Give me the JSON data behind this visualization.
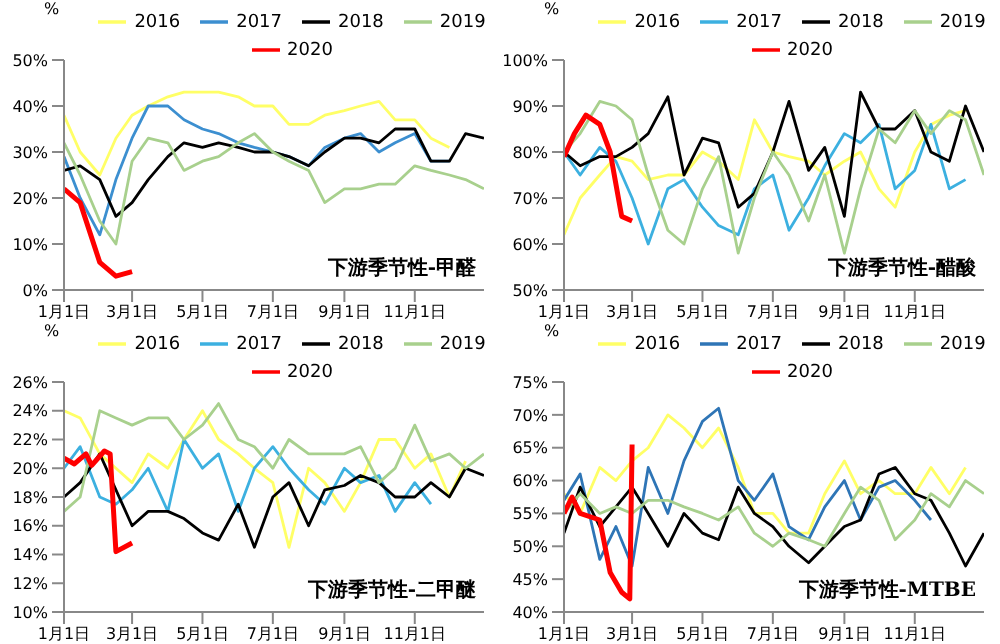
{
  "chart_data": [
    {
      "type": "line",
      "title": "下游季节性-甲醛",
      "ylabel": "%",
      "legend": "top",
      "grid": false,
      "marker": "none",
      "line_style": "solid",
      "x": [
        "--01-01",
        "--01-15",
        "--02-01",
        "--02-15",
        "--03-01",
        "--03-15",
        "--04-01",
        "--04-15",
        "--05-01",
        "--05-15",
        "--06-01",
        "--06-15",
        "--07-01",
        "--07-15",
        "--08-01",
        "--08-15",
        "--09-01",
        "--09-15",
        "--10-01",
        "--10-15",
        "--11-01",
        "--11-15",
        "--12-01",
        "--12-15",
        "--12-31"
      ],
      "xlim": [
        "--01-01",
        "--12-31"
      ],
      "xticks": [
        {
          "value": "--01-01",
          "label": "1月1日"
        },
        {
          "value": "--03-01",
          "label": "3月1日"
        },
        {
          "value": "--05-01",
          "label": "5月1日"
        },
        {
          "value": "--07-01",
          "label": "7月1日"
        },
        {
          "value": "--09-01",
          "label": "9月1日"
        },
        {
          "value": "--11-01",
          "label": "11月1日"
        }
      ],
      "ylim": [
        0,
        50
      ],
      "yticks": [
        {
          "value": 0,
          "label": "0%"
        },
        {
          "value": 10,
          "label": "10%"
        },
        {
          "value": 20,
          "label": "20%"
        },
        {
          "value": 30,
          "label": "30%"
        },
        {
          "value": 40,
          "label": "40%"
        },
        {
          "value": 50,
          "label": "50%"
        }
      ],
      "series": [
        {
          "name": "2016",
          "color": "#ffff66",
          "values": [
            38,
            30,
            25,
            33,
            38,
            40,
            42,
            43,
            43,
            43,
            42,
            40,
            40,
            36,
            36,
            38,
            39,
            40,
            41,
            37,
            37,
            33,
            31,
            null,
            null
          ]
        },
        {
          "name": "2017",
          "color": "#3c8fd0",
          "values": [
            29,
            20,
            12,
            24,
            33,
            40,
            40,
            37,
            35,
            34,
            32,
            31,
            30,
            29,
            27,
            31,
            33,
            34,
            30,
            32,
            34,
            28,
            28,
            null,
            null
          ]
        },
        {
          "name": "2018",
          "color": "#000000",
          "values": [
            26,
            27,
            24,
            16,
            19,
            24,
            29,
            32,
            31,
            32,
            31,
            30,
            30,
            29,
            27,
            30,
            33,
            33,
            32,
            35,
            35,
            28,
            28,
            34,
            33
          ]
        },
        {
          "name": "2019",
          "color": "#a8d08d",
          "values": [
            32,
            25,
            15,
            10,
            28,
            33,
            32,
            26,
            28,
            29,
            32,
            34,
            30,
            28,
            26,
            19,
            22,
            22,
            23,
            23,
            27,
            26,
            25,
            24,
            22
          ]
        },
        {
          "name": "2020",
          "color": "#ff0000",
          "x": [
            "--01-01",
            "--01-15",
            "--02-01",
            "--02-15",
            "--03-01"
          ],
          "values": [
            22,
            19,
            6,
            3,
            4
          ]
        }
      ]
    },
    {
      "type": "line",
      "title": "下游季节性-醋酸",
      "ylabel": "%",
      "legend": "top",
      "grid": false,
      "marker": "none",
      "line_style": "solid",
      "x": [
        "--01-01",
        "--01-15",
        "--02-01",
        "--02-15",
        "--03-01",
        "--03-15",
        "--04-01",
        "--04-15",
        "--05-01",
        "--05-15",
        "--06-01",
        "--06-15",
        "--07-01",
        "--07-15",
        "--08-01",
        "--08-15",
        "--09-01",
        "--09-15",
        "--10-01",
        "--10-15",
        "--11-01",
        "--11-15",
        "--12-01",
        "--12-15",
        "--12-31"
      ],
      "xlim": [
        "--01-01",
        "--12-31"
      ],
      "xticks": [
        {
          "value": "--01-01",
          "label": "1月1日"
        },
        {
          "value": "--03-01",
          "label": "3月1日"
        },
        {
          "value": "--05-01",
          "label": "5月1日"
        },
        {
          "value": "--07-01",
          "label": "7月1日"
        },
        {
          "value": "--09-01",
          "label": "9月1日"
        },
        {
          "value": "--11-01",
          "label": "11月1日"
        }
      ],
      "ylim": [
        50,
        100
      ],
      "yticks": [
        {
          "value": 50,
          "label": "50%"
        },
        {
          "value": 60,
          "label": "60%"
        },
        {
          "value": 70,
          "label": "70%"
        },
        {
          "value": 80,
          "label": "80%"
        },
        {
          "value": 90,
          "label": "90%"
        },
        {
          "value": 100,
          "label": "100%"
        }
      ],
      "series": [
        {
          "name": "2016",
          "color": "#ffff66",
          "values": [
            62,
            70,
            75,
            79,
            78,
            74,
            75,
            75,
            80,
            78,
            74,
            87,
            80,
            79,
            78,
            75,
            78,
            80,
            72,
            68,
            80,
            86,
            88,
            89,
            null
          ]
        },
        {
          "name": "2017",
          "color": "#3cb0e0",
          "values": [
            80,
            75,
            81,
            78,
            70,
            60,
            72,
            74,
            68,
            64,
            62,
            72,
            75,
            63,
            70,
            77,
            84,
            82,
            86,
            72,
            76,
            86,
            72,
            74,
            null
          ]
        },
        {
          "name": "2018",
          "color": "#000000",
          "values": [
            80,
            77,
            79,
            79,
            81,
            84,
            92,
            75,
            83,
            82,
            68,
            71,
            80,
            91,
            76,
            81,
            66,
            93,
            85,
            85,
            89,
            80,
            78,
            90,
            80
          ]
        },
        {
          "name": "2019",
          "color": "#a8d08d",
          "values": [
            80,
            84,
            91,
            90,
            87,
            75,
            63,
            60,
            72,
            79,
            58,
            70,
            80,
            75,
            65,
            75,
            58,
            72,
            85,
            82,
            89,
            84,
            89,
            87,
            75
          ]
        },
        {
          "name": "2020",
          "color": "#ff0000",
          "x": [
            "--01-01",
            "--01-10",
            "--01-20",
            "--02-01",
            "--02-10",
            "--02-20",
            "--03-01"
          ],
          "values": [
            79,
            84,
            88,
            86,
            80,
            66,
            65
          ]
        }
      ]
    },
    {
      "type": "line",
      "title": "下游季节性-二甲醚",
      "ylabel": "%",
      "legend": "top",
      "grid": false,
      "marker": "none",
      "line_style": "solid",
      "x": [
        "--01-01",
        "--01-15",
        "--02-01",
        "--02-15",
        "--03-01",
        "--03-15",
        "--04-01",
        "--04-15",
        "--05-01",
        "--05-15",
        "--06-01",
        "--06-15",
        "--07-01",
        "--07-15",
        "--08-01",
        "--08-15",
        "--09-01",
        "--09-15",
        "--10-01",
        "--10-15",
        "--11-01",
        "--11-15",
        "--12-01",
        "--12-15",
        "--12-31"
      ],
      "xlim": [
        "--01-01",
        "--12-31"
      ],
      "xticks": [
        {
          "value": "--01-01",
          "label": "1月1日"
        },
        {
          "value": "--03-01",
          "label": "3月1日"
        },
        {
          "value": "--05-01",
          "label": "5月1日"
        },
        {
          "value": "--07-01",
          "label": "7月1日"
        },
        {
          "value": "--09-01",
          "label": "9月1日"
        },
        {
          "value": "--11-01",
          "label": "11月1日"
        }
      ],
      "ylim": [
        10,
        26
      ],
      "yticks": [
        {
          "value": 10,
          "label": "10%"
        },
        {
          "value": 12,
          "label": "12%"
        },
        {
          "value": 14,
          "label": "14%"
        },
        {
          "value": 16,
          "label": "16%"
        },
        {
          "value": 18,
          "label": "18%"
        },
        {
          "value": 20,
          "label": "20%"
        },
        {
          "value": 22,
          "label": "22%"
        },
        {
          "value": 24,
          "label": "24%"
        },
        {
          "value": 26,
          "label": "26%"
        }
      ],
      "series": [
        {
          "name": "2016",
          "color": "#ffff66",
          "values": [
            24,
            23.5,
            21,
            20,
            19,
            21,
            20,
            22,
            24,
            22,
            21,
            20,
            19,
            14.5,
            20,
            19,
            17,
            19,
            22,
            22,
            20,
            21,
            18,
            20.5,
            null
          ]
        },
        {
          "name": "2017",
          "color": "#3cb0e0",
          "values": [
            20,
            21.5,
            18,
            17.5,
            18.5,
            20,
            17,
            22,
            20,
            21,
            17,
            20,
            21.5,
            20,
            18.5,
            17.5,
            20,
            19,
            19.5,
            17,
            19,
            17.5,
            null,
            null,
            null
          ]
        },
        {
          "name": "2018",
          "color": "#000000",
          "values": [
            18,
            19,
            21,
            18.5,
            16,
            17,
            17,
            16.5,
            15.5,
            15,
            17.5,
            14.5,
            18,
            19,
            16,
            18.5,
            18.8,
            19.5,
            19,
            18,
            18,
            19,
            18,
            20,
            19.5
          ]
        },
        {
          "name": "2019",
          "color": "#a8d08d",
          "values": [
            17,
            18,
            24,
            23.5,
            23,
            23.5,
            23.5,
            22,
            23,
            24.5,
            22,
            21.5,
            20,
            22,
            21,
            21,
            21,
            21.5,
            19,
            20,
            23,
            20.5,
            21,
            20,
            21
          ]
        },
        {
          "name": "2020",
          "color": "#ff0000",
          "x": [
            "--01-01",
            "--01-10",
            "--01-20",
            "--01-25",
            "--02-05",
            "--02-10",
            "--02-15",
            "--03-01"
          ],
          "values": [
            20.7,
            20.3,
            21,
            20.2,
            21.2,
            21,
            14.2,
            14.8
          ]
        }
      ]
    },
    {
      "type": "line",
      "title": "下游季节性-MTBE",
      "ylabel": "%",
      "legend": "top",
      "grid": false,
      "marker": "none",
      "line_style": "solid",
      "x": [
        "--01-01",
        "--01-15",
        "--02-01",
        "--02-15",
        "--03-01",
        "--03-15",
        "--04-01",
        "--04-15",
        "--05-01",
        "--05-15",
        "--06-01",
        "--06-15",
        "--07-01",
        "--07-15",
        "--08-01",
        "--08-15",
        "--09-01",
        "--09-15",
        "--10-01",
        "--10-15",
        "--11-01",
        "--11-15",
        "--12-01",
        "--12-15",
        "--12-31"
      ],
      "xlim": [
        "--01-01",
        "--12-31"
      ],
      "xticks": [
        {
          "value": "--01-01",
          "label": "1月1日"
        },
        {
          "value": "--03-01",
          "label": "3月1日"
        },
        {
          "value": "--05-01",
          "label": "5月1日"
        },
        {
          "value": "--07-01",
          "label": "7月1日"
        },
        {
          "value": "--09-01",
          "label": "9月1日"
        },
        {
          "value": "--11-01",
          "label": "11月1日"
        }
      ],
      "ylim": [
        40,
        75
      ],
      "yticks": [
        {
          "value": 40,
          "label": "40%"
        },
        {
          "value": 45,
          "label": "45%"
        },
        {
          "value": 50,
          "label": "50%"
        },
        {
          "value": 55,
          "label": "55%"
        },
        {
          "value": 60,
          "label": "60%"
        },
        {
          "value": 65,
          "label": "65%"
        },
        {
          "value": 70,
          "label": "70%"
        },
        {
          "value": 75,
          "label": "75%"
        }
      ],
      "series": [
        {
          "name": "2016",
          "color": "#ffff66",
          "values": [
            58,
            55,
            62,
            60,
            63,
            65,
            70,
            68,
            65,
            68,
            62,
            55,
            55,
            52,
            52,
            58,
            63,
            58,
            60,
            58,
            58,
            62,
            58,
            62,
            null
          ]
        },
        {
          "name": "2017",
          "color": "#2e75b6",
          "values": [
            57,
            61,
            48,
            53,
            47,
            62,
            55,
            63,
            69,
            71,
            60,
            57,
            61,
            53,
            51,
            56,
            60,
            54,
            59,
            60,
            57,
            54,
            null,
            null,
            null
          ]
        },
        {
          "name": "2018",
          "color": "#000000",
          "values": [
            52,
            59,
            53,
            56,
            59,
            55,
            50,
            55,
            52,
            51,
            59,
            55,
            53,
            50,
            47.5,
            50,
            53,
            54,
            61,
            62,
            58,
            57,
            52,
            47,
            52
          ]
        },
        {
          "name": "2019",
          "color": "#a8d08d",
          "values": [
            55,
            58,
            55,
            56,
            55,
            57,
            57,
            56,
            55,
            54,
            56,
            52,
            50,
            52,
            51,
            50,
            55,
            59,
            57,
            51,
            54,
            58,
            56,
            60,
            58
          ]
        },
        {
          "name": "2020",
          "color": "#ff0000",
          "x": [
            "--01-01",
            "--01-08",
            "--01-15",
            "--02-01",
            "--02-10",
            "--02-20",
            "--02-27",
            "--03-01"
          ],
          "values": [
            55,
            57.5,
            55,
            54,
            46,
            43,
            42,
            65.5
          ]
        }
      ]
    }
  ]
}
